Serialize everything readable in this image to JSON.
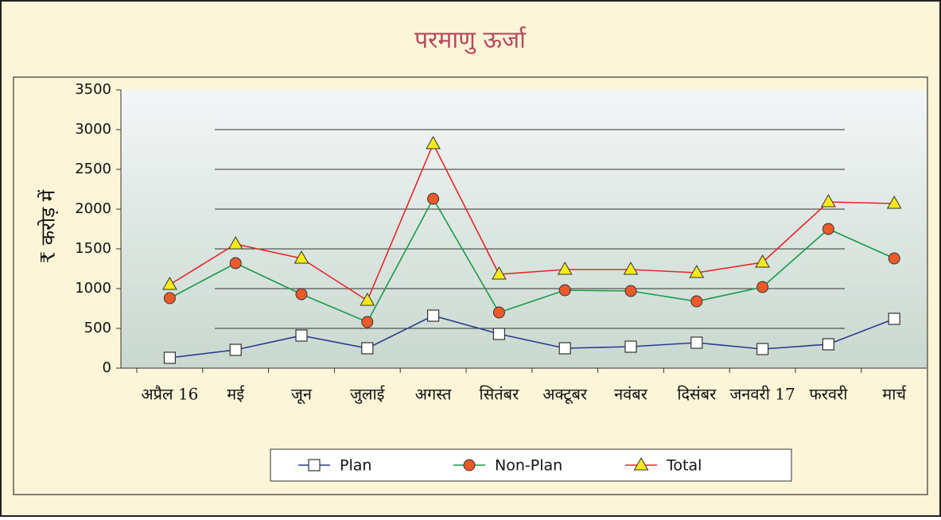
{
  "chart_data": {
    "type": "line",
    "title": "परमाणु ऊर्जा",
    "y_label": "₹ करोड़ में",
    "categories": [
      "अप्रैल 16",
      "मई",
      "जून",
      "जुलाई",
      "अगस्त",
      "सितंबर",
      "अक्टूबर",
      "नवंबर",
      "दिसंबर",
      "जनवरी 17",
      "फरवरी",
      "मार्च"
    ],
    "series": [
      {
        "name": "Plan",
        "color": "#2b3a8f",
        "marker": "square",
        "values": [
          130,
          230,
          410,
          250,
          660,
          430,
          250,
          270,
          320,
          240,
          300,
          620
        ]
      },
      {
        "name": "Non-Plan",
        "color": "#1a9a4a",
        "marker": "circle",
        "values": [
          880,
          1320,
          930,
          580,
          2130,
          700,
          980,
          970,
          840,
          1020,
          1750,
          1380
        ]
      },
      {
        "name": "Total",
        "color": "#e8262a",
        "marker": "triangle",
        "values": [
          1050,
          1560,
          1380,
          850,
          2820,
          1180,
          1240,
          1240,
          1200,
          1330,
          2090,
          2070
        ]
      }
    ],
    "ylim": [
      0,
      3500
    ],
    "yticks": [
      0,
      500,
      1000,
      1500,
      2000,
      2500,
      3000,
      3500
    ],
    "grid": true,
    "legend": "bottom"
  }
}
